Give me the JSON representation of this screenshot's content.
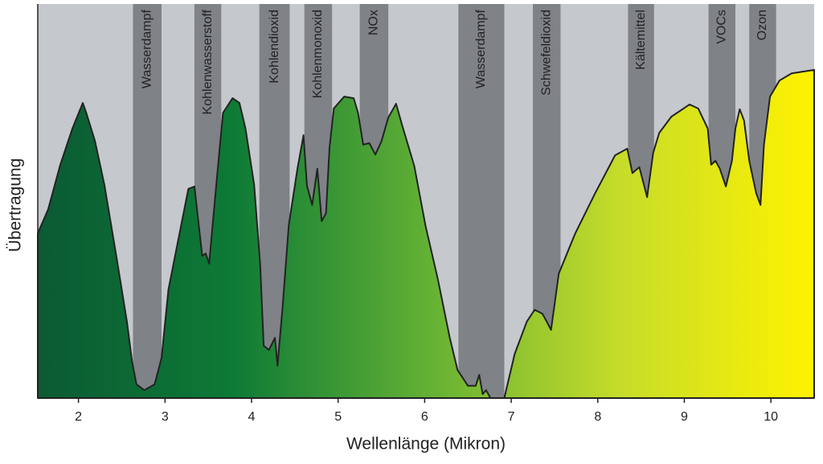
{
  "chart_data": {
    "type": "area",
    "x_label": "Wellenlänge (Mikron)",
    "y_label": "Übertragung",
    "xlim": [
      1.53,
      10.5
    ],
    "ylim": [
      0,
      100
    ],
    "xticks": [
      2,
      3,
      4,
      5,
      6,
      7,
      8,
      9,
      10
    ],
    "background": "#c5c8cc",
    "band_color": "#7f8286",
    "gradient": [
      "#0b5a33",
      "#0d7a36",
      "#62b034",
      "#c6dc2a",
      "#fff200"
    ],
    "bands": [
      {
        "label": "Wasserdampf",
        "range": [
          2.63,
          2.96
        ]
      },
      {
        "label": "Kohlenwasserstoff",
        "range": [
          3.34,
          3.65
        ]
      },
      {
        "label": "Kohlendioxid",
        "range": [
          4.09,
          4.44
        ]
      },
      {
        "label": "Kohlenmonoxid",
        "range": [
          4.61,
          4.93
        ]
      },
      {
        "label": "NOx",
        "range": [
          5.25,
          5.58
        ]
      },
      {
        "label": "Wasserdampf",
        "range": [
          6.39,
          6.92
        ]
      },
      {
        "label": "Schwefeldioxid",
        "range": [
          7.25,
          7.57
        ]
      },
      {
        "label": "Kältemittel",
        "range": [
          8.35,
          8.65
        ]
      },
      {
        "label": "VOCs",
        "range": [
          9.28,
          9.59
        ]
      },
      {
        "label": "Ozon",
        "range": [
          9.75,
          10.06
        ]
      }
    ],
    "x": [
      1.53,
      1.65,
      1.79,
      1.93,
      2.05,
      2.09,
      2.19,
      2.3,
      2.44,
      2.56,
      2.62,
      2.67,
      2.76,
      2.88,
      2.96,
      3.04,
      3.15,
      3.27,
      3.34,
      3.39,
      3.43,
      3.47,
      3.51,
      3.55,
      3.6,
      3.67,
      3.78,
      3.86,
      3.93,
      4.03,
      4.1,
      4.14,
      4.2,
      4.27,
      4.3,
      4.36,
      4.43,
      4.53,
      4.6,
      4.64,
      4.7,
      4.76,
      4.81,
      4.86,
      4.9,
      4.95,
      5.07,
      5.18,
      5.23,
      5.29,
      5.36,
      5.43,
      5.5,
      5.58,
      5.67,
      5.74,
      5.88,
      6.01,
      6.15,
      6.29,
      6.38,
      6.5,
      6.59,
      6.63,
      6.67,
      6.71,
      6.76,
      6.92,
      7.04,
      7.18,
      7.27,
      7.36,
      7.41,
      7.46,
      7.55,
      7.74,
      7.97,
      8.2,
      8.34,
      8.4,
      8.48,
      8.57,
      8.64,
      8.71,
      8.85,
      9.06,
      9.16,
      9.27,
      9.31,
      9.36,
      9.41,
      9.48,
      9.55,
      9.59,
      9.64,
      9.69,
      9.75,
      9.83,
      9.88,
      9.92,
      9.99,
      10.1,
      10.24,
      10.5
    ],
    "values": [
      41.8,
      47.9,
      59.2,
      68.4,
      74.9,
      72.4,
      65.3,
      54.1,
      35.7,
      19.4,
      9.2,
      3.5,
      2.0,
      3.5,
      10.2,
      27.6,
      39.8,
      53.1,
      53.7,
      43.9,
      36.1,
      36.7,
      34.1,
      43.9,
      55.9,
      72.4,
      76.1,
      74.9,
      68.4,
      54.1,
      33.7,
      13.3,
      12.2,
      15.3,
      8.2,
      23.5,
      43.9,
      58.2,
      66.7,
      53.9,
      49.0,
      58.2,
      44.9,
      46.9,
      63.3,
      73.5,
      76.5,
      76.1,
      72.4,
      64.3,
      64.7,
      61.8,
      65.1,
      71.2,
      74.7,
      69.2,
      58.9,
      43.7,
      30.4,
      15.3,
      7.1,
      3.1,
      3.1,
      5.9,
      1.0,
      2.0,
      0,
      0,
      11.2,
      19.4,
      22.4,
      21.4,
      19.4,
      17.3,
      31.6,
      41.8,
      52.0,
      61.6,
      63.3,
      57.1,
      58.6,
      51.0,
      62.2,
      67.3,
      71.4,
      74.5,
      73.5,
      68.4,
      59.2,
      60.2,
      58.2,
      53.7,
      60.2,
      68.4,
      73.3,
      70.4,
      60.2,
      52.0,
      49.0,
      64.3,
      76.5,
      80.6,
      82.4,
      83.3
    ]
  }
}
